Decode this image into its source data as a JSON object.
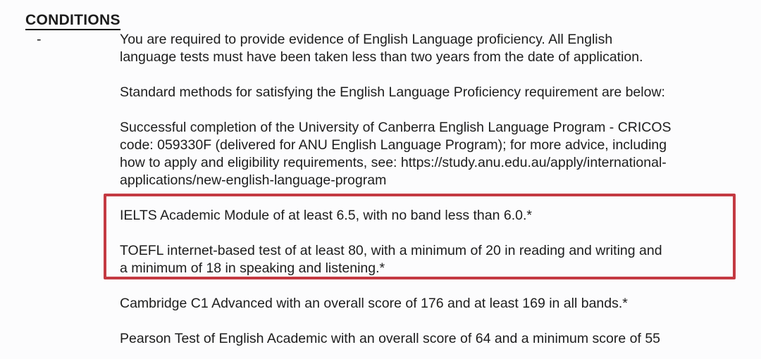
{
  "page": {
    "background_color": "#fcfcfd",
    "text_color": "#1d1d1d"
  },
  "heading": "CONDITIONS",
  "bullet": "-",
  "annotation": {
    "type": "highlight-rectangle",
    "color": "#c43a42"
  },
  "content": {
    "paragraphs": [
      {
        "id": "evidence-requirement",
        "lines": [
          "You are required to provide evidence of English Language proficiency. All English",
          "language tests must have been taken less than two years from the date of application."
        ]
      },
      {
        "id": "standard-methods-intro",
        "lines": [
          "Standard methods for satisfying the English Language Proficiency requirement are below:"
        ]
      },
      {
        "id": "canberra-program",
        "lines": [
          "Successful completion of the University of Canberra English Language Program - CRICOS",
          "code: 059330F (delivered for ANU English Language Program); for more advice, including",
          "how to apply and eligibility requirements, see: https://study.anu.edu.au/apply/international-",
          "applications/new-english-language-program"
        ]
      },
      {
        "id": "ielts-requirement",
        "highlighted": true,
        "lines": [
          "IELTS Academic Module of at least 6.5, with no band less than 6.0.*"
        ]
      },
      {
        "id": "toefl-requirement",
        "highlighted": true,
        "lines": [
          "TOEFL internet-based test of at least 80, with a minimum of 20 in reading and writing and",
          "a minimum of 18 in speaking and listening.*"
        ]
      },
      {
        "id": "cambridge-requirement",
        "lines": [
          "Cambridge C1 Advanced with an overall score of 176 and at least 169 in all bands.*"
        ]
      },
      {
        "id": "pearson-requirement",
        "lines": [
          "Pearson Test of English Academic with an overall score of 64 and a minimum score of 55"
        ]
      }
    ]
  }
}
